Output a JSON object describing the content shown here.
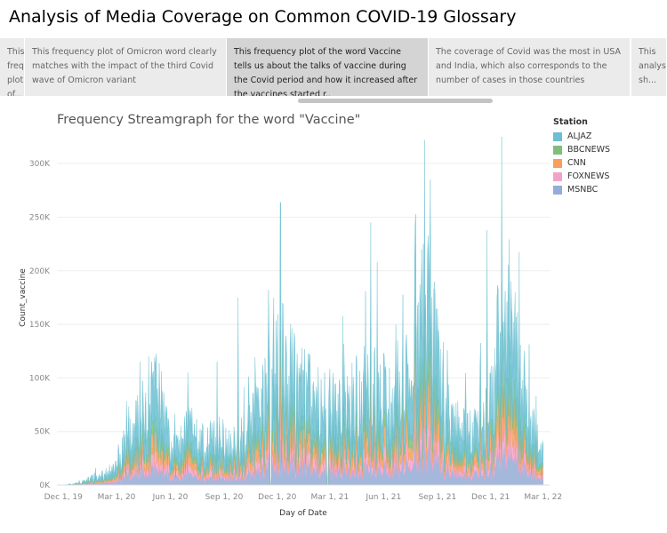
{
  "page_title": "Analysis of Media Coverage on Common COVID-19 Glossary",
  "story_points": [
    {
      "text": "This frequency plot of...",
      "active": false
    },
    {
      "text": "This frequency plot of Omicron word clearly matches with the impact of the third Covid wave of Omicron variant",
      "active": false
    },
    {
      "text": "This frequency plot of the word Vaccine tells us about the talks of vaccine during the Covid period and how it increased after the vaccines started r..",
      "active": true
    },
    {
      "text": "The coverage of Covid was the most in USA and India, which also corresponds to the number of cases in those countries",
      "active": false
    },
    {
      "text": "This analysis sh...",
      "active": false
    }
  ],
  "legend": {
    "title": "Station",
    "items": [
      {
        "label": "ALJAZ",
        "color": "#6bbfd1"
      },
      {
        "label": "BBCNEWS",
        "color": "#7fbf7b"
      },
      {
        "label": "CNN",
        "color": "#f6a05c"
      },
      {
        "label": "FOXNEWS",
        "color": "#f4a3c8"
      },
      {
        "label": "MSNBC",
        "color": "#94acd6"
      }
    ]
  },
  "chart_data": {
    "type": "area",
    "stacked": true,
    "title": "Frequency Streamgraph for the word \"Vaccine\"",
    "xlabel": "Day of Date",
    "ylabel": "Count_vaccine",
    "x_ticks": [
      "Dec 1, 19",
      "Mar 1, 20",
      "Jun 1, 20",
      "Sep 1, 20",
      "Dec 1, 20",
      "Mar 1, 21",
      "Jun 1, 21",
      "Sep 1, 21",
      "Dec 1, 21",
      "Mar 1, 22"
    ],
    "y_ticks": [
      "0K",
      "50K",
      "100K",
      "150K",
      "200K",
      "250K",
      "300K"
    ],
    "y_tick_values": [
      0,
      50000,
      100000,
      150000,
      200000,
      250000,
      300000
    ],
    "ylim": [
      0,
      330000
    ],
    "grid": true,
    "legend_position": "right",
    "series_order": [
      "MSNBC",
      "FOXNEWS",
      "CNN",
      "BBCNEWS",
      "ALJAZ"
    ],
    "dates": [
      "2019-12-01",
      "2019-12-15",
      "2020-01-01",
      "2020-01-15",
      "2020-02-01",
      "2020-02-15",
      "2020-03-01",
      "2020-03-15",
      "2020-04-01",
      "2020-04-15",
      "2020-05-01",
      "2020-05-15",
      "2020-06-01",
      "2020-06-15",
      "2020-07-01",
      "2020-07-15",
      "2020-08-01",
      "2020-08-15",
      "2020-09-01",
      "2020-09-15",
      "2020-10-01",
      "2020-10-15",
      "2020-11-01",
      "2020-11-15",
      "2020-12-01",
      "2020-12-15",
      "2021-01-01",
      "2021-01-15",
      "2021-02-01",
      "2021-02-15",
      "2021-03-01",
      "2021-03-15",
      "2021-04-01",
      "2021-04-15",
      "2021-05-01",
      "2021-05-15",
      "2021-06-01",
      "2021-06-15",
      "2021-07-01",
      "2021-07-15",
      "2021-08-01",
      "2021-08-15",
      "2021-09-01",
      "2021-09-15",
      "2021-10-01",
      "2021-10-15",
      "2021-11-01",
      "2021-11-15",
      "2021-12-01",
      "2021-12-15",
      "2022-01-01",
      "2022-01-15",
      "2022-02-01",
      "2022-02-15",
      "2022-03-01"
    ],
    "totals": [
      0,
      1000,
      3000,
      6000,
      9000,
      12000,
      25000,
      40000,
      55000,
      70000,
      85000,
      95000,
      40000,
      35000,
      60000,
      45000,
      40000,
      50000,
      45000,
      40000,
      40000,
      55000,
      80000,
      110000,
      120000,
      125000,
      100000,
      95000,
      90000,
      85000,
      80000,
      75000,
      80000,
      90000,
      95000,
      100000,
      90000,
      75000,
      85000,
      110000,
      150000,
      180000,
      130000,
      70000,
      60000,
      55000,
      50000,
      60000,
      80000,
      150000,
      160000,
      120000,
      70000,
      50000,
      30000
    ],
    "peaks": [
      {
        "date": "2020-04-10",
        "total": 115000
      },
      {
        "date": "2020-04-25",
        "total": 120000
      },
      {
        "date": "2020-07-01",
        "total": 105000
      },
      {
        "date": "2020-08-20",
        "total": 115000
      },
      {
        "date": "2020-09-25",
        "total": 175000
      },
      {
        "date": "2020-11-25",
        "total": 175000
      },
      {
        "date": "2020-12-10",
        "total": 170000
      },
      {
        "date": "2021-05-10",
        "total": 245000
      },
      {
        "date": "2021-06-25",
        "total": 135000
      },
      {
        "date": "2021-08-05",
        "total": 220000
      },
      {
        "date": "2021-08-10",
        "total": 322000
      },
      {
        "date": "2021-08-20",
        "total": 285000
      },
      {
        "date": "2021-11-25",
        "total": 238000
      },
      {
        "date": "2021-12-20",
        "total": 325000
      },
      {
        "date": "2022-01-05",
        "total": 190000
      }
    ],
    "shares": {
      "MSNBC": 0.18,
      "FOXNEWS": 0.12,
      "CNN": 0.15,
      "BBCNEWS": 0.1,
      "ALJAZ": 0.45
    }
  }
}
